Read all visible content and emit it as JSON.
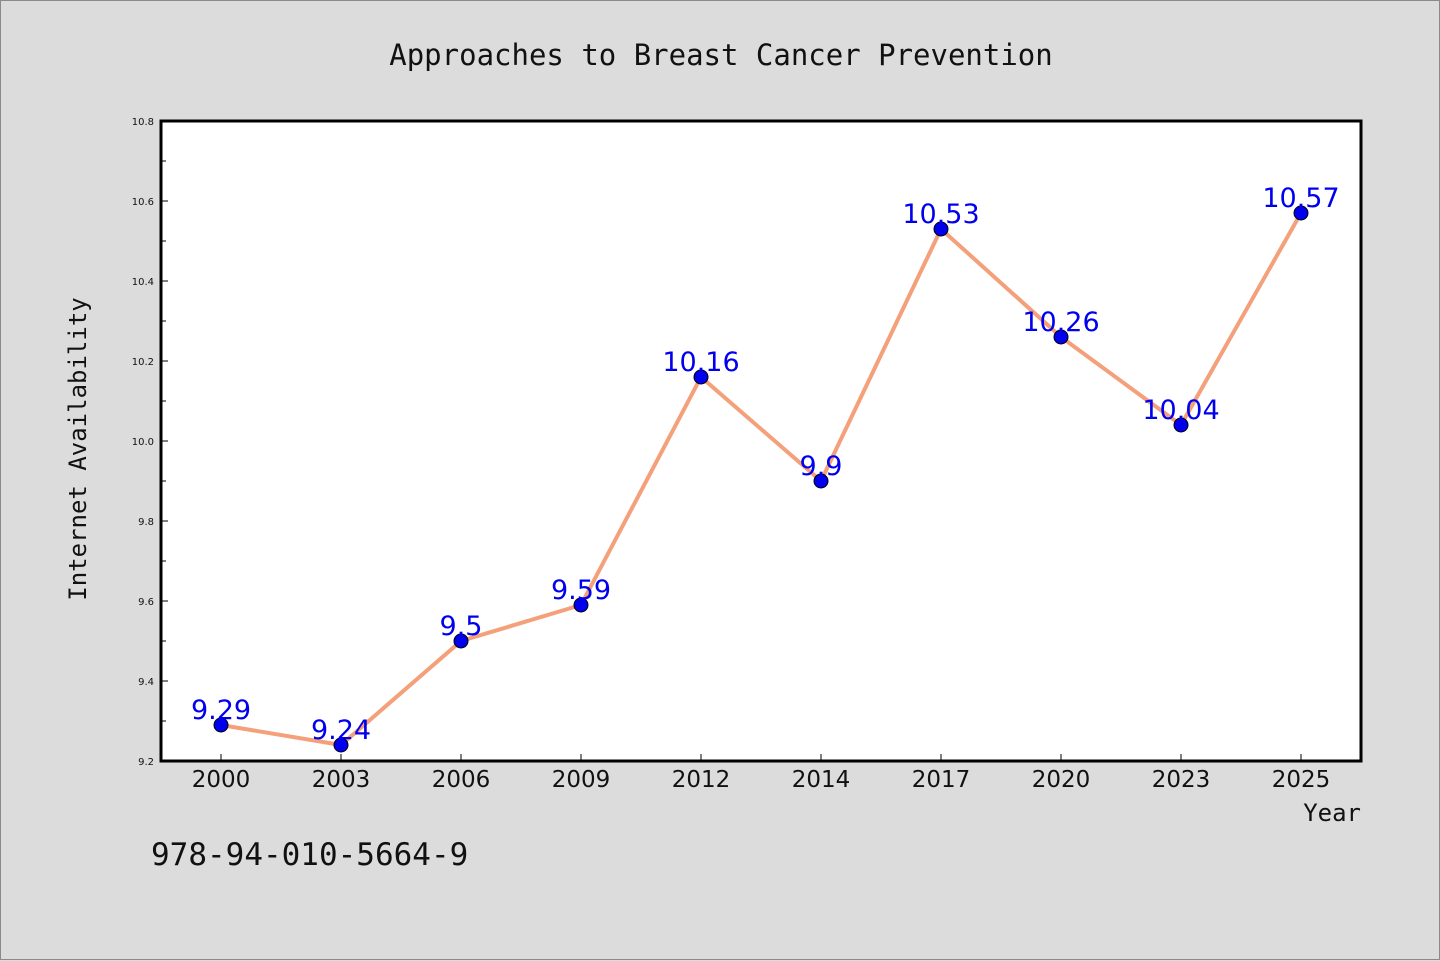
{
  "chart_data": {
    "type": "line",
    "title": "Approaches to Breast Cancer Prevention",
    "xlabel": "Year",
    "ylabel": "Internet Availability",
    "categories": [
      "2000",
      "2003",
      "2006",
      "2009",
      "2012",
      "2014",
      "2017",
      "2020",
      "2023",
      "2025"
    ],
    "values": [
      9.29,
      9.24,
      9.5,
      9.59,
      10.16,
      9.9,
      10.53,
      10.26,
      10.04,
      10.57
    ],
    "data_labels": [
      "9.29",
      "9.24",
      "9.5",
      "9.59",
      "10.16",
      "9.9",
      "10.53",
      "10.26",
      "10.04",
      "10.57"
    ],
    "ylim": [
      9.2,
      10.8
    ],
    "yticks": [
      "9.2",
      "9.4",
      "9.6",
      "9.8",
      "10.0",
      "10.2",
      "10.4",
      "10.6",
      "10.8"
    ],
    "grid": false,
    "line_color": "#f4a07a",
    "marker_color": "#0000ee",
    "label_color": "#0000ee"
  },
  "footnote": "978-94-010-5664-9"
}
